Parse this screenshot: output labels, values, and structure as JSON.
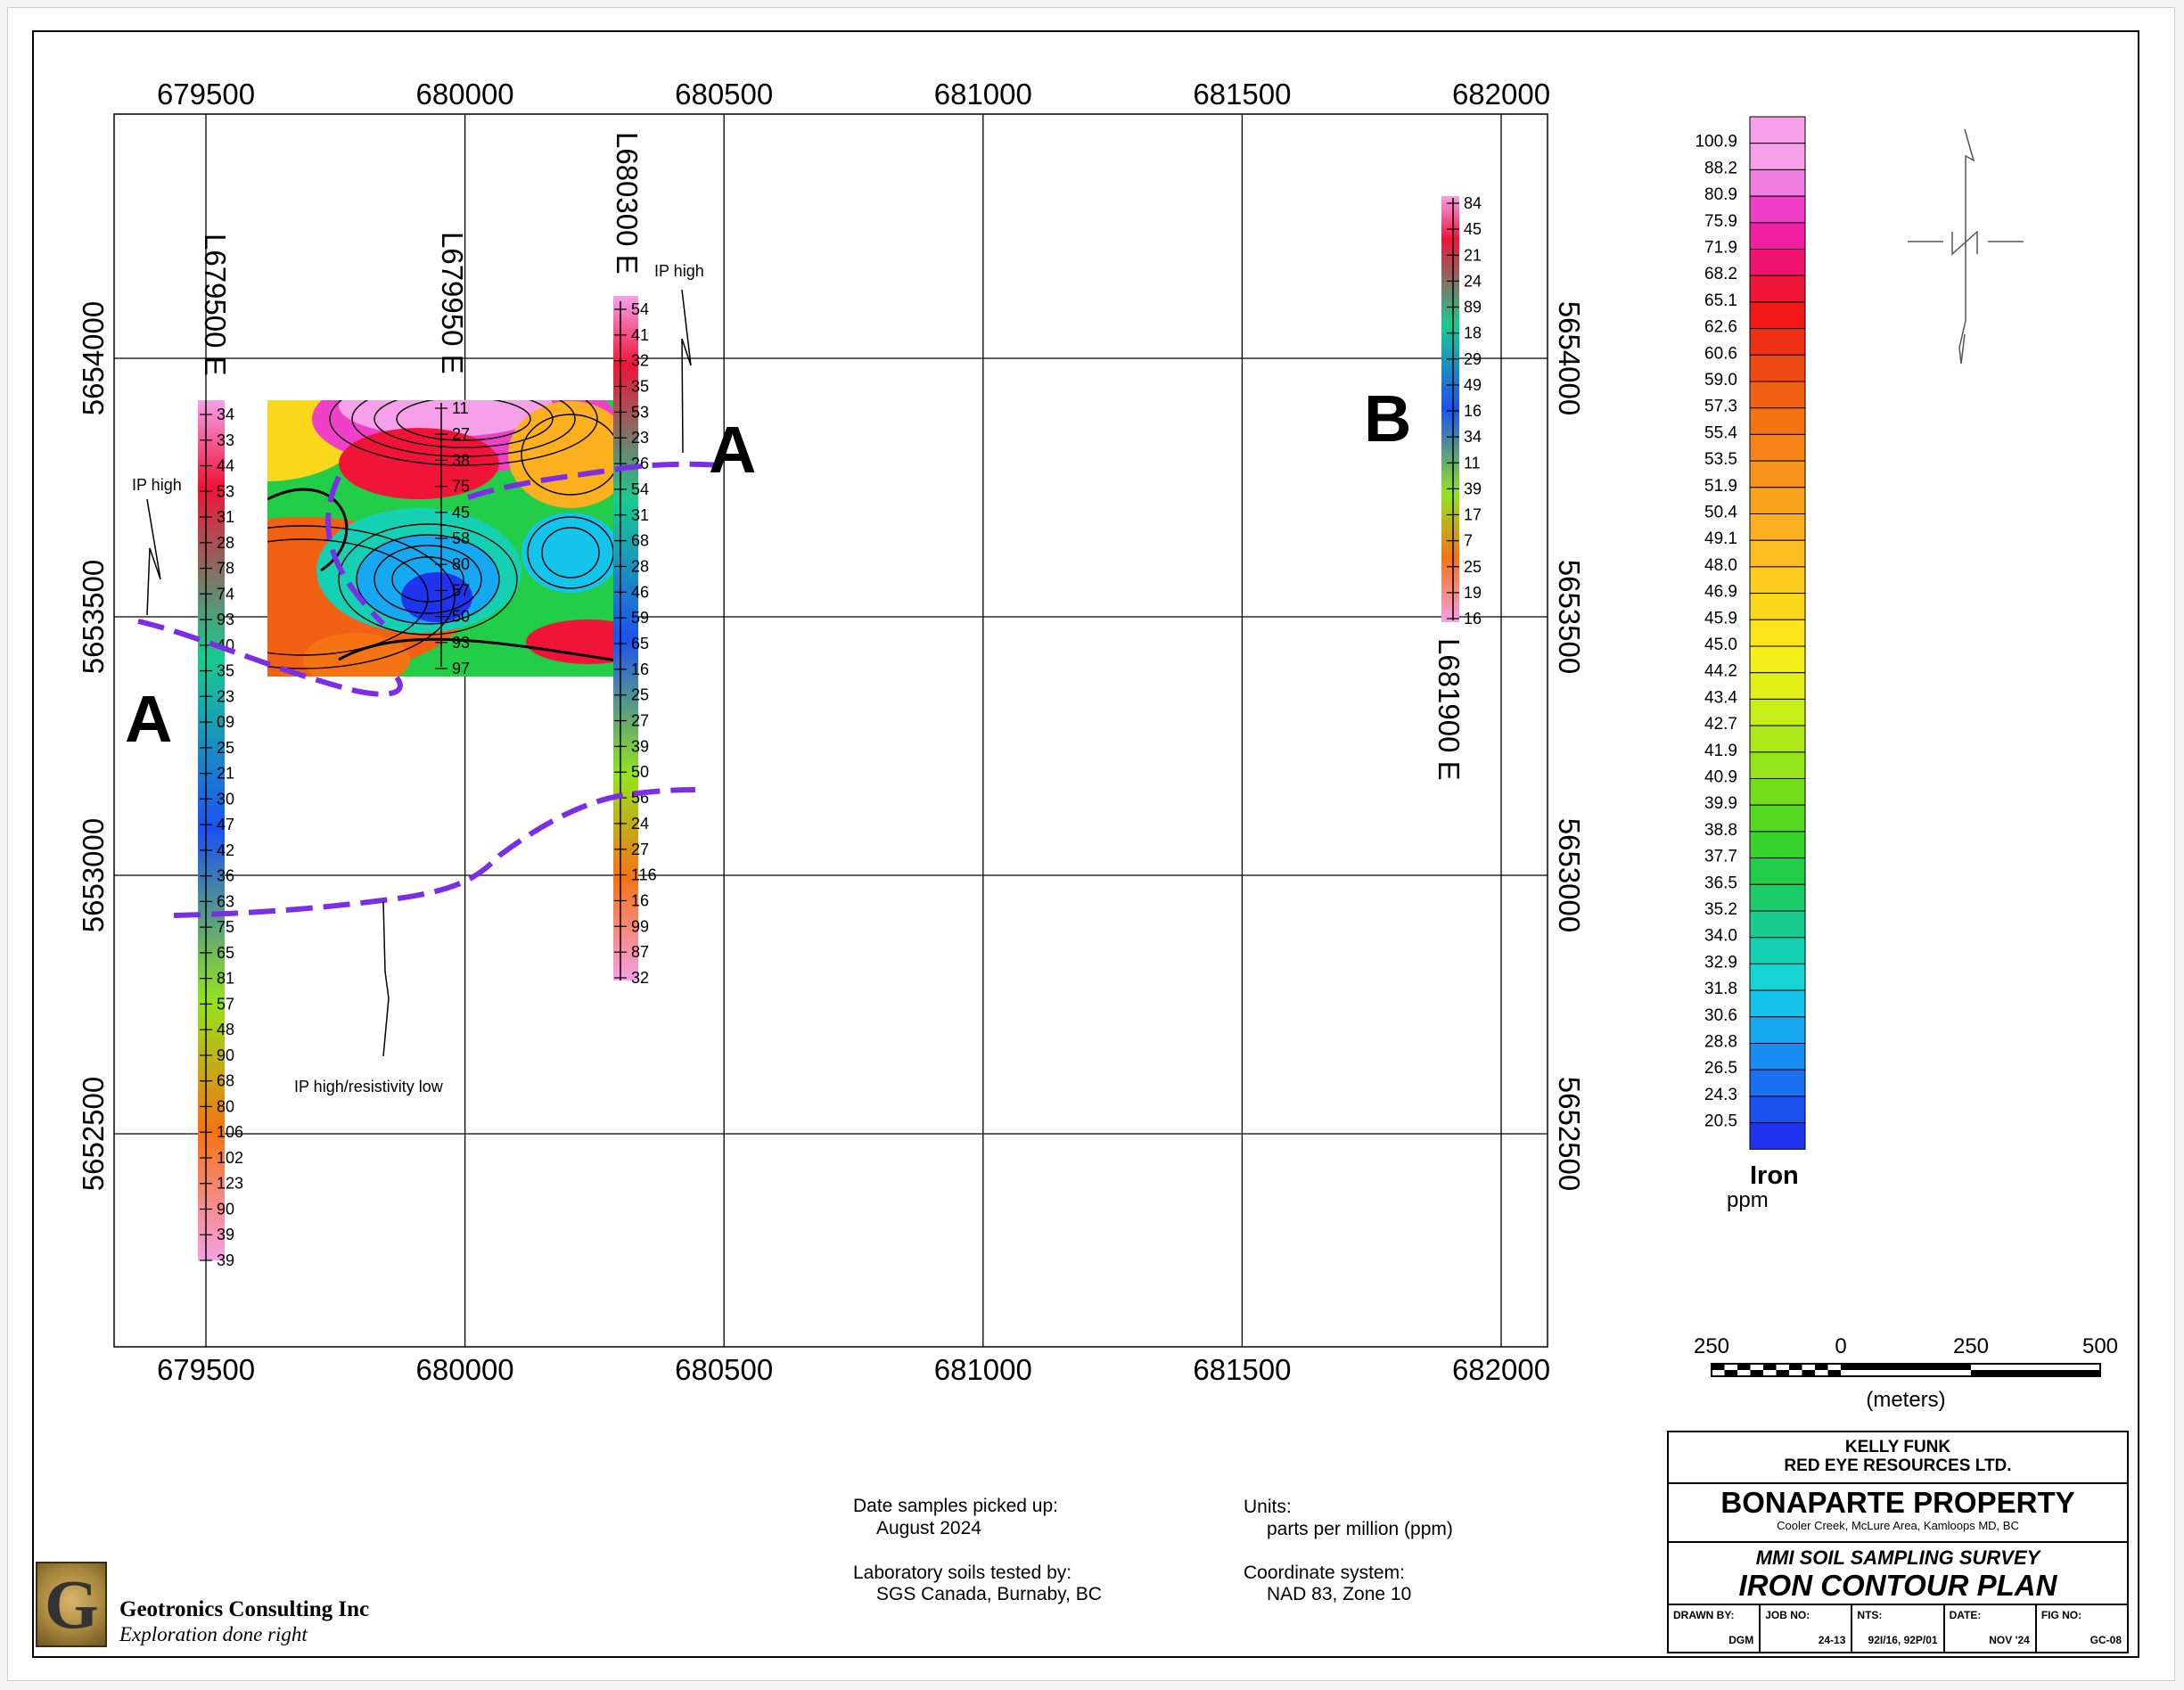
{
  "map": {
    "easting_ticks": [
      "679500",
      "680000",
      "680500",
      "681000",
      "681500",
      "682000"
    ],
    "northing_ticks": [
      "5654000",
      "5653500",
      "5653000",
      "5652500"
    ],
    "lines": [
      {
        "label": "L679500 E",
        "easting": 679500
      },
      {
        "label": "L679950 E",
        "easting": 679950
      },
      {
        "label": "L680300 E",
        "easting": 680300
      },
      {
        "label": "L681900 E",
        "easting": 681900
      }
    ],
    "zone_labels": [
      "A",
      "A",
      "B"
    ],
    "annotations": [
      "IP high",
      "IP high",
      "IP high/resistivity low"
    ],
    "samples_L679500": [
      "34",
      "33",
      "44",
      "53",
      "31",
      "28",
      "78",
      "74",
      "93",
      "40",
      "35",
      "23",
      "09",
      "25",
      "21",
      "30",
      "47",
      "42",
      "36",
      "63",
      "75",
      "65",
      "81",
      "57",
      "48",
      "90",
      "68",
      "80",
      "106",
      "102",
      "123",
      "90",
      "39",
      "39"
    ],
    "samples_L679950": [
      "11",
      "27",
      "38",
      "75",
      "45",
      "58",
      "80",
      "57",
      "50",
      "93",
      "97"
    ],
    "samples_L680300": [
      "54",
      "41",
      "32",
      "35",
      "53",
      "23",
      "26",
      "54",
      "31",
      "68",
      "28",
      "46",
      "59",
      "65",
      "16",
      "25",
      "27",
      "39",
      "50",
      "56",
      "24",
      "27",
      "116",
      "16",
      "99",
      "87",
      "32"
    ],
    "samples_L681900": [
      "84",
      "45",
      "21",
      "24",
      "89",
      "18",
      "29",
      "49",
      "16",
      "34",
      "11",
      "39",
      "17",
      "7",
      "25",
      "19",
      "16"
    ]
  },
  "legend": {
    "values": [
      "100.9",
      "88.2",
      "80.9",
      "75.9",
      "71.9",
      "68.2",
      "65.1",
      "62.6",
      "60.6",
      "59.0",
      "57.3",
      "55.4",
      "53.5",
      "51.9",
      "50.4",
      "49.1",
      "48.0",
      "46.9",
      "45.9",
      "45.0",
      "44.2",
      "43.4",
      "42.7",
      "41.9",
      "40.9",
      "39.9",
      "38.8",
      "37.7",
      "36.5",
      "35.2",
      "34.0",
      "32.9",
      "31.8",
      "30.6",
      "28.8",
      "26.5",
      "24.3",
      "20.5"
    ],
    "colors": [
      "#f5a0e8",
      "#f07ce0",
      "#f040c8",
      "#f01ea0",
      "#f0146e",
      "#f01438",
      "#f01818",
      "#f03016",
      "#f04a14",
      "#f26014",
      "#f47414",
      "#f68418",
      "#f8941c",
      "#faa41e",
      "#fcb020",
      "#fcbe20",
      "#fccc1e",
      "#fcd81c",
      "#fce41a",
      "#f6ee18",
      "#e2f018",
      "#c8ee18",
      "#aee81a",
      "#94e41c",
      "#74de1e",
      "#54d822",
      "#36d22a",
      "#22ce48",
      "#1ccc6a",
      "#18cc90",
      "#16d0b4",
      "#14d4d4",
      "#14c4ea",
      "#16a8f0",
      "#188cf0",
      "#1a70f0",
      "#1c52f0",
      "#2034f0"
    ],
    "title": "Iron",
    "unit": "ppm"
  },
  "scale_bar": {
    "labels": [
      "250",
      "0",
      "250",
      "500"
    ],
    "unit": "(meters)"
  },
  "notes": {
    "date_label": "Date samples picked up:",
    "date_value": "August 2024",
    "lab_label": "Laboratory soils tested by:",
    "lab_value": "SGS Canada, Burnaby, BC",
    "units_label": "Units:",
    "units_value": "parts per million (ppm)",
    "coord_label": "Coordinate system:",
    "coord_value": "NAD 83, Zone 10"
  },
  "title_block": {
    "client1": "KELLY FUNK",
    "client2": "RED EYE RESOURCES LTD.",
    "property": "BONAPARTE PROPERTY",
    "location": "Cooler Creek,  McLure Area, Kamloops MD, BC",
    "survey": "MMI SOIL SAMPLING SURVEY",
    "plan": "IRON CONTOUR PLAN",
    "drawn_by_label": "DRAWN BY:",
    "drawn_by": "DGM",
    "job_no_label": "JOB NO:",
    "job_no": "24-13",
    "nts_label": "NTS:",
    "nts": "92I/16, 92P/01",
    "date_label": "DATE:",
    "date": "NOV '24",
    "fig_no_label": "FIG NO:",
    "fig_no": "GC-08"
  },
  "company": {
    "name": "Geotronics Consulting Inc",
    "tagline": "Exploration done right",
    "logo_letter": "G"
  }
}
